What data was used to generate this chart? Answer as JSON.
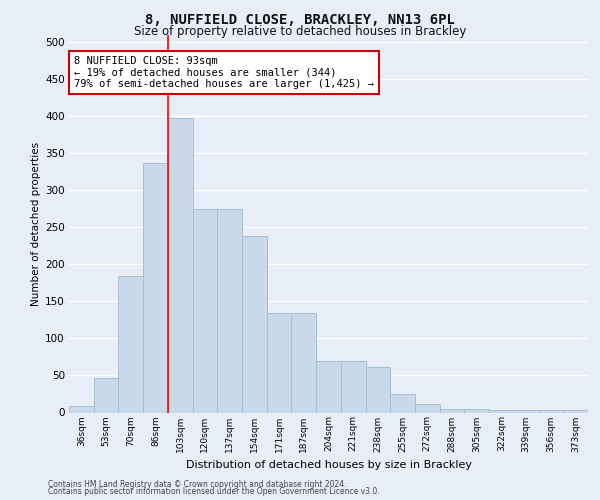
{
  "title_line1": "8, NUFFIELD CLOSE, BRACKLEY, NN13 6PL",
  "title_line2": "Size of property relative to detached houses in Brackley",
  "xlabel": "Distribution of detached houses by size in Brackley",
  "ylabel": "Number of detached properties",
  "footer_line1": "Contains HM Land Registry data © Crown copyright and database right 2024.",
  "footer_line2": "Contains public sector information licensed under the Open Government Licence v3.0.",
  "categories": [
    "36sqm",
    "53sqm",
    "70sqm",
    "86sqm",
    "103sqm",
    "120sqm",
    "137sqm",
    "154sqm",
    "171sqm",
    "187sqm",
    "204sqm",
    "221sqm",
    "238sqm",
    "255sqm",
    "272sqm",
    "288sqm",
    "305sqm",
    "322sqm",
    "339sqm",
    "356sqm",
    "373sqm"
  ],
  "values": [
    9,
    46,
    184,
    337,
    398,
    275,
    275,
    238,
    135,
    135,
    70,
    70,
    61,
    25,
    11,
    5,
    5,
    4,
    3,
    3,
    3
  ],
  "bar_color": "#c9d9ea",
  "bar_edge_color": "#a8bfd4",
  "background_color": "#e8eef8",
  "plot_bg_color": "#e8eef8",
  "grid_color": "#ffffff",
  "red_line_x": 3.5,
  "annotation_text": "8 NUFFIELD CLOSE: 93sqm\n← 19% of detached houses are smaller (344)\n79% of semi-detached houses are larger (1,425) →",
  "annotation_box_color": "#ffffff",
  "annotation_box_edge_color": "#cc0000",
  "ylim": [
    0,
    510
  ],
  "yticks": [
    0,
    50,
    100,
    150,
    200,
    250,
    300,
    350,
    400,
    450,
    500
  ]
}
